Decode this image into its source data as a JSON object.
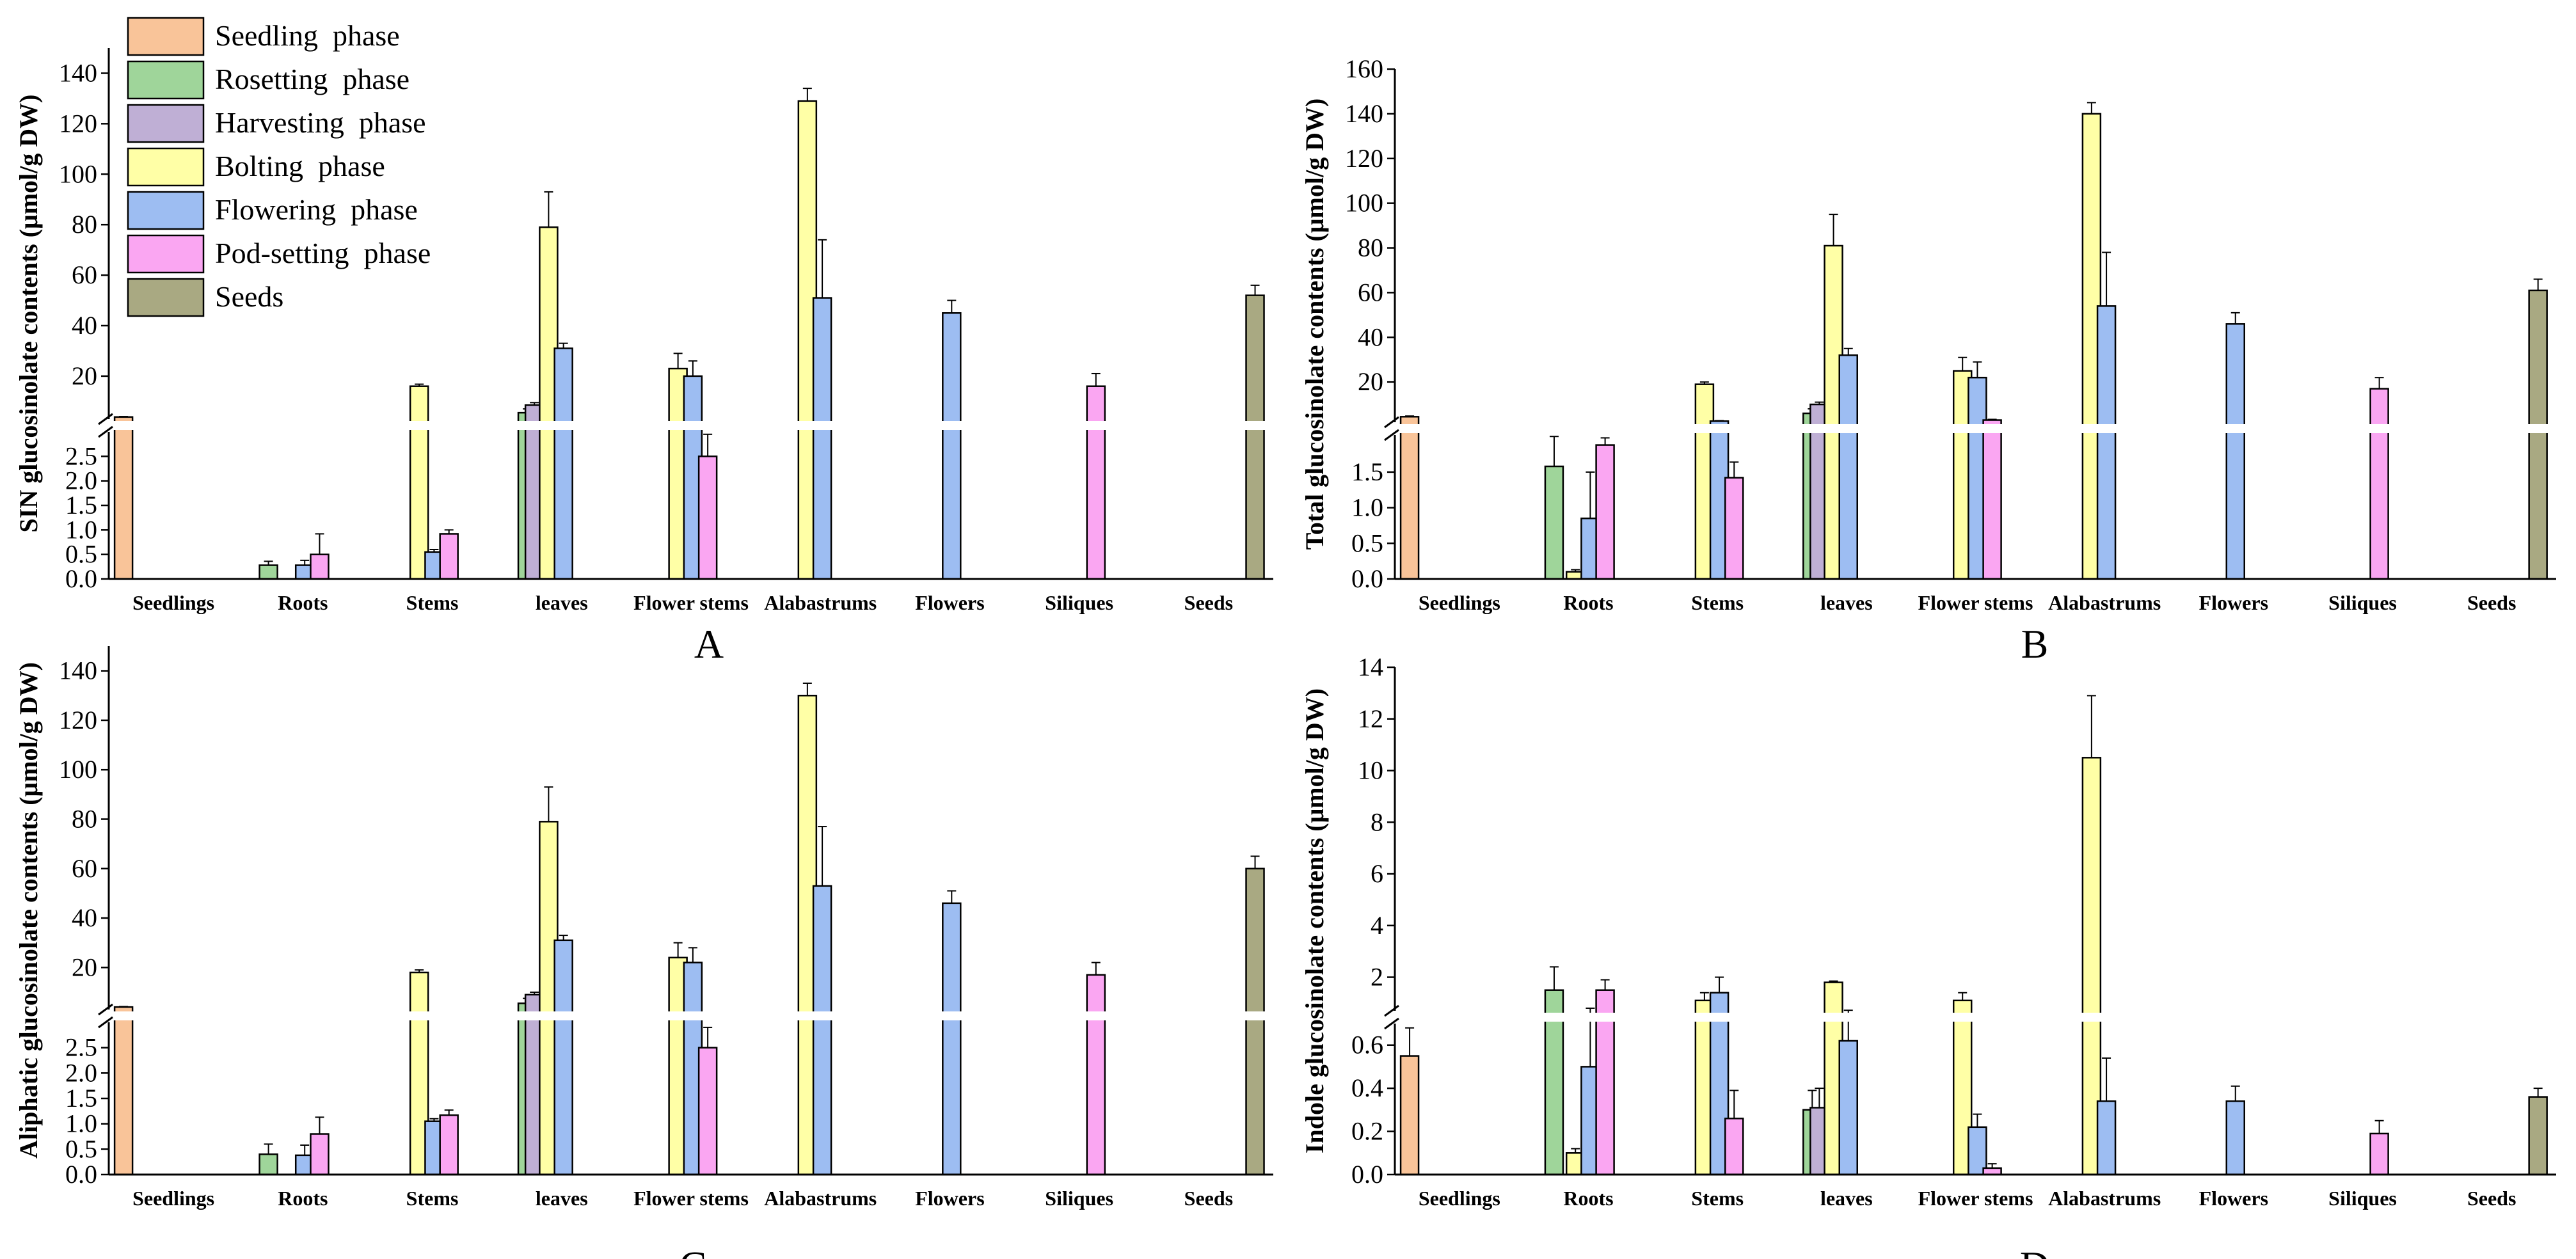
{
  "legend": [
    {
      "label": "Seedling  phase",
      "color": "#F9C499"
    },
    {
      "label": "Rosetting  phase",
      "color": "#9FD59A"
    },
    {
      "label": "Harvesting  phase",
      "color": "#BFAFD5"
    },
    {
      "label": "Bolting  phase",
      "color": "#FFFFA6"
    },
    {
      "label": "Flowering  phase",
      "color": "#9DBDF2"
    },
    {
      "label": "Pod-setting  phase",
      "color": "#FAA6F2"
    },
    {
      "label": "Seeds",
      "color": "#A9A982"
    }
  ],
  "chart_data": [
    {
      "panel": "A",
      "type": "bar",
      "broken_axis": true,
      "ylabel": "SIN glucosinolate contents (μmol/g DW)",
      "categories": [
        "Seedlings",
        "Roots",
        "Stems",
        "leaves",
        "Flower stems",
        "Alabastrums",
        "Flowers",
        "Siliques",
        "Seeds"
      ],
      "ylim_lower": [
        0,
        3
      ],
      "ylim_upper": [
        3,
        150
      ],
      "yticks_lower": [
        {
          "v": 0,
          "t": "0.0"
        },
        {
          "v": 0.5,
          "t": "0.5"
        },
        {
          "v": 1,
          "t": "1.0"
        },
        {
          "v": 1.5,
          "t": "1.5"
        },
        {
          "v": 2,
          "t": "2.0"
        },
        {
          "v": 2.5,
          "t": "2.5"
        }
      ],
      "yticks_upper": [
        {
          "v": 20,
          "t": "20"
        },
        {
          "v": 40,
          "t": "40"
        },
        {
          "v": 60,
          "t": "60"
        },
        {
          "v": 80,
          "t": "80"
        },
        {
          "v": 100,
          "t": "100"
        },
        {
          "v": 120,
          "t": "120"
        },
        {
          "v": 140,
          "t": "140"
        }
      ],
      "bars": [
        {
          "cat": 0,
          "series": 0,
          "value": 3.8,
          "err": 0.2
        },
        {
          "cat": 1,
          "series": 1,
          "value": 0.28,
          "err": 0.08
        },
        {
          "cat": 1,
          "series": 4,
          "value": 0.28,
          "err": 0.1
        },
        {
          "cat": 1,
          "series": 5,
          "value": 0.5,
          "err": 0.42
        },
        {
          "cat": 2,
          "series": 3,
          "value": 16,
          "err": 0.8
        },
        {
          "cat": 2,
          "series": 4,
          "value": 0.55,
          "err": 0.05
        },
        {
          "cat": 2,
          "series": 5,
          "value": 0.92,
          "err": 0.08
        },
        {
          "cat": 3,
          "series": 1,
          "value": 5.5,
          "err": 1.5
        },
        {
          "cat": 3,
          "series": 2,
          "value": 8.5,
          "err": 1
        },
        {
          "cat": 3,
          "series": 3,
          "value": 79,
          "err": 14
        },
        {
          "cat": 3,
          "series": 4,
          "value": 31,
          "err": 2
        },
        {
          "cat": 4,
          "series": 3,
          "value": 23,
          "err": 6
        },
        {
          "cat": 4,
          "series": 4,
          "value": 20,
          "err": 6
        },
        {
          "cat": 4,
          "series": 5,
          "value": 2.5,
          "err": 0.45
        },
        {
          "cat": 5,
          "series": 3,
          "value": 129,
          "err": 5
        },
        {
          "cat": 5,
          "series": 4,
          "value": 51,
          "err": 23
        },
        {
          "cat": 6,
          "series": 4,
          "value": 45,
          "err": 5
        },
        {
          "cat": 7,
          "series": 5,
          "value": 16,
          "err": 5
        },
        {
          "cat": 8,
          "series": 6,
          "value": 52,
          "err": 4
        }
      ]
    },
    {
      "panel": "B",
      "type": "bar",
      "broken_axis": true,
      "ylabel": "Total glucosinolate contents (μmol/g DW)",
      "categories": [
        "Seedlings",
        "Roots",
        "Stems",
        "leaves",
        "Flower stems",
        "Alabastrums",
        "Flowers",
        "Siliques",
        "Seeds"
      ],
      "ylim_lower": [
        0,
        2.02
      ],
      "ylim_upper": [
        2.02,
        160
      ],
      "yticks_lower": [
        {
          "v": 0,
          "t": "0.0"
        },
        {
          "v": 0.5,
          "t": "0.5"
        },
        {
          "v": 1,
          "t": "1.0"
        },
        {
          "v": 1.5,
          "t": "1.5"
        }
      ],
      "yticks_upper": [
        {
          "v": 20,
          "t": "20"
        },
        {
          "v": 40,
          "t": "40"
        },
        {
          "v": 60,
          "t": "60"
        },
        {
          "v": 80,
          "t": "80"
        },
        {
          "v": 100,
          "t": "100"
        },
        {
          "v": 120,
          "t": "120"
        },
        {
          "v": 140,
          "t": "140"
        },
        {
          "v": 160,
          "t": "160"
        }
      ],
      "bars": [
        {
          "cat": 0,
          "series": 0,
          "value": 4.5,
          "err": 0.3
        },
        {
          "cat": 1,
          "series": 1,
          "value": 1.58,
          "err": 0.42
        },
        {
          "cat": 1,
          "series": 3,
          "value": 0.1,
          "err": 0.03
        },
        {
          "cat": 1,
          "series": 4,
          "value": 0.85,
          "err": 0.65
        },
        {
          "cat": 1,
          "series": 5,
          "value": 1.88,
          "err": 0.1
        },
        {
          "cat": 2,
          "series": 3,
          "value": 19,
          "err": 1
        },
        {
          "cat": 2,
          "series": 4,
          "value": 2.5,
          "err": 0.2
        },
        {
          "cat": 2,
          "series": 5,
          "value": 1.42,
          "err": 0.22
        },
        {
          "cat": 3,
          "series": 1,
          "value": 6,
          "err": 2
        },
        {
          "cat": 3,
          "series": 2,
          "value": 10,
          "err": 1
        },
        {
          "cat": 3,
          "series": 3,
          "value": 81,
          "err": 14
        },
        {
          "cat": 3,
          "series": 4,
          "value": 32,
          "err": 3
        },
        {
          "cat": 4,
          "series": 3,
          "value": 25,
          "err": 6
        },
        {
          "cat": 4,
          "series": 4,
          "value": 22,
          "err": 7
        },
        {
          "cat": 4,
          "series": 5,
          "value": 3,
          "err": 0.3
        },
        {
          "cat": 5,
          "series": 3,
          "value": 140,
          "err": 5
        },
        {
          "cat": 5,
          "series": 4,
          "value": 54,
          "err": 24
        },
        {
          "cat": 6,
          "series": 4,
          "value": 46,
          "err": 5
        },
        {
          "cat": 7,
          "series": 5,
          "value": 17,
          "err": 5
        },
        {
          "cat": 8,
          "series": 6,
          "value": 61,
          "err": 5
        }
      ]
    },
    {
      "panel": "C",
      "type": "bar",
      "broken_axis": true,
      "ylabel": "Aliphatic glucosinolate contents (μmol/g DW)",
      "categories": [
        "Seedlings",
        "Roots",
        "Stems",
        "leaves",
        "Flower stems",
        "Alabastrums",
        "Flowers",
        "Siliques",
        "Seeds"
      ],
      "ylim_lower": [
        0,
        3
      ],
      "ylim_upper": [
        3,
        150
      ],
      "yticks_lower": [
        {
          "v": 0,
          "t": "0.0"
        },
        {
          "v": 0.5,
          "t": "0.5"
        },
        {
          "v": 1,
          "t": "1.0"
        },
        {
          "v": 1.5,
          "t": "1.5"
        },
        {
          "v": 2,
          "t": "2.0"
        },
        {
          "v": 2.5,
          "t": "2.5"
        }
      ],
      "yticks_upper": [
        {
          "v": 20,
          "t": "20"
        },
        {
          "v": 40,
          "t": "40"
        },
        {
          "v": 60,
          "t": "60"
        },
        {
          "v": 80,
          "t": "80"
        },
        {
          "v": 100,
          "t": "100"
        },
        {
          "v": 120,
          "t": "120"
        },
        {
          "v": 140,
          "t": "140"
        }
      ],
      "bars": [
        {
          "cat": 0,
          "series": 0,
          "value": 4.0,
          "err": 0.2
        },
        {
          "cat": 1,
          "series": 1,
          "value": 0.4,
          "err": 0.2
        },
        {
          "cat": 1,
          "series": 4,
          "value": 0.38,
          "err": 0.2
        },
        {
          "cat": 1,
          "series": 5,
          "value": 0.8,
          "err": 0.33
        },
        {
          "cat": 2,
          "series": 3,
          "value": 18,
          "err": 1
        },
        {
          "cat": 2,
          "series": 4,
          "value": 1.05,
          "err": 0.05
        },
        {
          "cat": 2,
          "series": 5,
          "value": 1.17,
          "err": 0.1
        },
        {
          "cat": 3,
          "series": 1,
          "value": 5.5,
          "err": 2
        },
        {
          "cat": 3,
          "series": 2,
          "value": 9,
          "err": 1
        },
        {
          "cat": 3,
          "series": 3,
          "value": 79,
          "err": 14
        },
        {
          "cat": 3,
          "series": 4,
          "value": 31,
          "err": 2
        },
        {
          "cat": 4,
          "series": 3,
          "value": 24,
          "err": 6
        },
        {
          "cat": 4,
          "series": 4,
          "value": 22,
          "err": 6
        },
        {
          "cat": 4,
          "series": 5,
          "value": 2.5,
          "err": 0.4
        },
        {
          "cat": 5,
          "series": 3,
          "value": 130,
          "err": 5
        },
        {
          "cat": 5,
          "series": 4,
          "value": 53,
          "err": 24
        },
        {
          "cat": 6,
          "series": 4,
          "value": 46,
          "err": 5
        },
        {
          "cat": 7,
          "series": 5,
          "value": 17,
          "err": 5
        },
        {
          "cat": 8,
          "series": 6,
          "value": 60,
          "err": 5
        }
      ]
    },
    {
      "panel": "D",
      "type": "bar",
      "broken_axis": true,
      "ylabel": "Indole glucosinolate contents (μmol/g DW)",
      "categories": [
        "Seedlings",
        "Roots",
        "Stems",
        "leaves",
        "Flower stems",
        "Alabastrums",
        "Flowers",
        "Siliques",
        "Seeds"
      ],
      "ylim_lower": [
        0,
        0.7
      ],
      "ylim_upper": [
        0.7,
        14
      ],
      "yticks_lower": [
        {
          "v": 0,
          "t": "0.0"
        },
        {
          "v": 0.2,
          "t": "0.2"
        },
        {
          "v": 0.4,
          "t": "0.4"
        },
        {
          "v": 0.6,
          "t": "0.6"
        }
      ],
      "yticks_upper": [
        {
          "v": 2,
          "t": "2"
        },
        {
          "v": 4,
          "t": "4"
        },
        {
          "v": 6,
          "t": "6"
        },
        {
          "v": 8,
          "t": "8"
        },
        {
          "v": 10,
          "t": "10"
        },
        {
          "v": 12,
          "t": "12"
        },
        {
          "v": 14,
          "t": "14"
        }
      ],
      "bars": [
        {
          "cat": 0,
          "series": 0,
          "value": 0.55,
          "err": 0.13
        },
        {
          "cat": 1,
          "series": 1,
          "value": 1.5,
          "err": 0.9
        },
        {
          "cat": 1,
          "series": 3,
          "value": 0.1,
          "err": 0.02
        },
        {
          "cat": 1,
          "series": 4,
          "value": 0.5,
          "err": 0.3
        },
        {
          "cat": 1,
          "series": 5,
          "value": 1.5,
          "err": 0.4
        },
        {
          "cat": 2,
          "series": 3,
          "value": 1.1,
          "err": 0.3
        },
        {
          "cat": 2,
          "series": 4,
          "value": 1.4,
          "err": 0.6
        },
        {
          "cat": 2,
          "series": 5,
          "value": 0.26,
          "err": 0.13
        },
        {
          "cat": 3,
          "series": 1,
          "value": 0.3,
          "err": 0.09
        },
        {
          "cat": 3,
          "series": 2,
          "value": 0.31,
          "err": 0.09
        },
        {
          "cat": 3,
          "series": 3,
          "value": 1.8,
          "err": 0.05
        },
        {
          "cat": 3,
          "series": 4,
          "value": 0.62,
          "err": 0.1
        },
        {
          "cat": 4,
          "series": 3,
          "value": 1.1,
          "err": 0.3
        },
        {
          "cat": 4,
          "series": 4,
          "value": 0.22,
          "err": 0.06
        },
        {
          "cat": 4,
          "series": 5,
          "value": 0.03,
          "err": 0.02
        },
        {
          "cat": 5,
          "series": 3,
          "value": 10.5,
          "err": 2.4
        },
        {
          "cat": 5,
          "series": 4,
          "value": 0.34,
          "err": 0.2
        },
        {
          "cat": 6,
          "series": 4,
          "value": 0.34,
          "err": 0.07
        },
        {
          "cat": 7,
          "series": 5,
          "value": 0.19,
          "err": 0.06
        },
        {
          "cat": 8,
          "series": 6,
          "value": 0.36,
          "err": 0.04
        }
      ]
    }
  ]
}
